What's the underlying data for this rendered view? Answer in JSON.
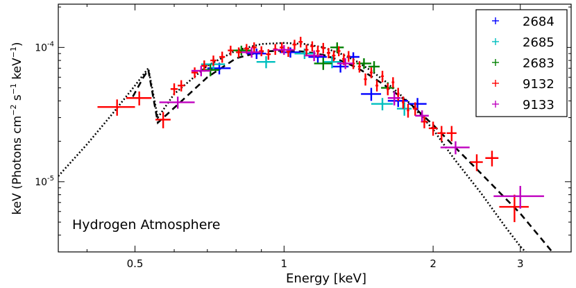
{
  "chart_data": {
    "type": "scatter",
    "title": "",
    "annotation": "Hydrogen Atmosphere",
    "xlabel": "Energy [keV]",
    "ylabel_parts": {
      "pre": "keV (Photons cm",
      "exp1": "−2",
      "mid1": " s",
      "exp2": "−1",
      "mid2": "  keV",
      "exp3": "−1",
      "post": ")"
    },
    "x_scale": "log",
    "y_scale": "log",
    "xlim": [
      0.35,
      3.8
    ],
    "ylim": [
      3e-06,
      0.00021
    ],
    "x_ticks": [
      {
        "value": 0.5,
        "label": "0.5"
      },
      {
        "value": 1,
        "label": "1"
      },
      {
        "value": 2,
        "label": "2"
      },
      {
        "value": 3,
        "label": "3"
      }
    ],
    "y_ticks": [
      {
        "value": 1e-05,
        "base": "10",
        "exp": "-5"
      },
      {
        "value": 0.0001,
        "base": "10",
        "exp": "-4"
      }
    ],
    "legend_position": "top-right",
    "series": [
      {
        "name": "2684",
        "color": "#0000ff",
        "points": [
          [
            0.74,
            7e-05,
            0.04,
            7e-06
          ],
          [
            0.88,
            9e-05,
            0.04,
            8e-06
          ],
          [
            1.03,
            9.2e-05,
            0.05,
            8e-06
          ],
          [
            1.17,
            8.5e-05,
            0.05,
            8e-06
          ],
          [
            1.3,
            7.2e-05,
            0.05,
            7e-06
          ],
          [
            1.38,
            8.5e-05,
            0.04,
            7e-06
          ],
          [
            1.5,
            4.5e-05,
            0.07,
            5e-06
          ],
          [
            1.7,
            4e-05,
            0.08,
            4e-06
          ],
          [
            1.86,
            3.8e-05,
            0.08,
            4e-06
          ]
        ]
      },
      {
        "name": "2685",
        "color": "#00bfbf",
        "points": [
          [
            0.72,
            7.5e-05,
            0.04,
            8e-06
          ],
          [
            0.92,
            7.8e-05,
            0.04,
            8e-06
          ],
          [
            1.1,
            9e-05,
            0.05,
            8e-06
          ],
          [
            1.25,
            7.8e-05,
            0.05,
            8e-06
          ],
          [
            1.58,
            3.8e-05,
            0.08,
            4e-06
          ],
          [
            1.75,
            3.5e-05,
            0.06,
            4e-06
          ]
        ]
      },
      {
        "name": "2683",
        "color": "#008000",
        "points": [
          [
            0.71,
            6.8e-05,
            0.03,
            7e-06
          ],
          [
            0.82,
            9.5e-05,
            0.04,
            8e-06
          ],
          [
            1.2,
            7.6e-05,
            0.05,
            8e-06
          ],
          [
            1.28,
            0.0001,
            0.04,
            9e-06
          ],
          [
            1.45,
            7.6e-05,
            0.05,
            7e-06
          ],
          [
            1.52,
            7.2e-05,
            0.04,
            7e-06
          ],
          [
            1.62,
            5e-05,
            0.05,
            5e-06
          ]
        ]
      },
      {
        "name": "9132",
        "color": "#ff0000",
        "points": [
          [
            0.46,
            3.6e-05,
            0.04,
            5e-06
          ],
          [
            0.51,
            4.2e-05,
            0.03,
            5e-06
          ],
          [
            0.57,
            2.9e-05,
            0.02,
            4e-06
          ],
          [
            0.6,
            4.9e-05,
            0.01,
            5e-06
          ],
          [
            0.62,
            5.2e-05,
            0.01,
            5e-06
          ],
          [
            0.66,
            6.5e-05,
            0.01,
            6e-06
          ],
          [
            0.69,
            7.3e-05,
            0.01,
            7e-06
          ],
          [
            0.72,
            8e-05,
            0.01,
            7e-06
          ],
          [
            0.75,
            8.5e-05,
            0.01,
            8e-06
          ],
          [
            0.78,
            9.5e-05,
            0.01,
            8e-06
          ],
          [
            0.81,
            9.2e-05,
            0.01,
            8e-06
          ],
          [
            0.84,
            9.8e-05,
            0.01,
            8e-06
          ],
          [
            0.87,
            0.0001,
            0.01,
            9e-06
          ],
          [
            0.9,
            9.4e-05,
            0.01,
            8e-06
          ],
          [
            0.93,
            8.9e-05,
            0.01,
            8e-06
          ],
          [
            0.96,
            9.7e-05,
            0.01,
            9e-06
          ],
          [
            0.99,
            0.0001,
            0.01,
            9e-06
          ],
          [
            1.02,
            9.3e-05,
            0.01,
            8e-06
          ],
          [
            1.05,
            0.000105,
            0.01,
            9e-06
          ],
          [
            1.08,
            0.00011,
            0.01,
            1e-05
          ],
          [
            1.11,
            9.6e-05,
            0.01,
            9e-06
          ],
          [
            1.14,
            0.000102,
            0.01,
            9e-06
          ],
          [
            1.17,
            9.4e-05,
            0.01,
            9e-06
          ],
          [
            1.2,
            9.9e-05,
            0.01,
            9e-06
          ],
          [
            1.23,
            9.1e-05,
            0.01,
            8e-06
          ],
          [
            1.26,
            8.7e-05,
            0.01,
            8e-06
          ],
          [
            1.29,
            9.4e-05,
            0.01,
            8e-06
          ],
          [
            1.32,
            8.2e-05,
            0.01,
            8e-06
          ],
          [
            1.35,
            8.6e-05,
            0.01,
            8e-06
          ],
          [
            1.38,
            7.6e-05,
            0.01,
            7e-06
          ],
          [
            1.42,
            7.2e-05,
            0.01,
            7e-06
          ],
          [
            1.46,
            5.8e-05,
            0.01,
            6e-06
          ],
          [
            1.5,
            6.5e-05,
            0.01,
            6e-06
          ],
          [
            1.54,
            5.2e-05,
            0.01,
            5e-06
          ],
          [
            1.58,
            6.1e-05,
            0.01,
            6e-06
          ],
          [
            1.62,
            4.9e-05,
            0.01,
            5e-06
          ],
          [
            1.66,
            5.5e-05,
            0.01,
            5e-06
          ],
          [
            1.7,
            4.5e-05,
            0.01,
            5e-06
          ],
          [
            1.74,
            3.9e-05,
            0.01,
            4e-06
          ],
          [
            1.78,
            3.4e-05,
            0.01,
            4e-06
          ],
          [
            1.84,
            3.5e-05,
            0.02,
            4e-06
          ],
          [
            1.92,
            2.8e-05,
            0.03,
            3e-06
          ],
          [
            2.0,
            2.5e-05,
            0.04,
            3e-06
          ],
          [
            2.08,
            2.3e-05,
            0.04,
            3e-06
          ],
          [
            2.18,
            2.3e-05,
            0.05,
            3e-06
          ],
          [
            2.45,
            1.4e-05,
            0.07,
            2e-06
          ],
          [
            2.63,
            1.5e-05,
            0.08,
            2e-06
          ],
          [
            2.92,
            6.5e-06,
            0.2,
            1.5e-06
          ]
        ]
      },
      {
        "name": "9133",
        "color": "#bf00bf",
        "points": [
          [
            0.61,
            3.9e-05,
            0.05,
            4e-06
          ],
          [
            0.68,
            6.7e-05,
            0.03,
            6e-06
          ],
          [
            0.86,
            9.2e-05,
            0.04,
            8e-06
          ],
          [
            1.0,
            9.6e-05,
            0.05,
            8e-06
          ],
          [
            1.15,
            8.7e-05,
            0.05,
            8e-06
          ],
          [
            1.33,
            7.6e-05,
            0.05,
            7e-06
          ],
          [
            1.67,
            4.2e-05,
            0.05,
            5e-06
          ],
          [
            1.9,
            3.1e-05,
            0.06,
            3e-06
          ],
          [
            2.22,
            1.8e-05,
            0.15,
            2e-06
          ],
          [
            3.0,
            7.8e-06,
            0.35,
            1.5e-06
          ]
        ]
      }
    ],
    "models": [
      {
        "name": "model-dashed",
        "style": "dashed",
        "points": [
          [
            0.495,
            4.3e-05
          ],
          [
            0.52,
            6e-05
          ],
          [
            0.532,
            6.8e-05
          ],
          [
            0.556,
            2.75e-05
          ],
          [
            0.6,
            3.55e-05
          ],
          [
            0.7,
            6e-05
          ],
          [
            0.8,
            8.3e-05
          ],
          [
            0.9,
            9.3e-05
          ],
          [
            1.0,
            9.5e-05
          ],
          [
            1.1,
            9.3e-05
          ],
          [
            1.2,
            8.8e-05
          ],
          [
            1.3,
            8e-05
          ],
          [
            1.4,
            7.1e-05
          ],
          [
            1.5,
            6.1e-05
          ],
          [
            1.6,
            5.2e-05
          ],
          [
            1.8,
            3.8e-05
          ],
          [
            2.0,
            2.65e-05
          ],
          [
            2.2,
            1.85e-05
          ],
          [
            2.5,
            1.15e-05
          ],
          [
            2.8,
            7.5e-06
          ],
          [
            3.0,
            5.8e-06
          ],
          [
            3.3,
            3.8e-06
          ],
          [
            3.48,
            3e-06
          ]
        ]
      },
      {
        "name": "model-dotted",
        "style": "dotted",
        "points": [
          [
            0.35,
            1.1e-05
          ],
          [
            0.4,
            1.9e-05
          ],
          [
            0.45,
            3.2e-05
          ],
          [
            0.5,
            5.2e-05
          ],
          [
            0.532,
            7e-05
          ],
          [
            0.556,
            3e-05
          ],
          [
            0.6,
            4.5e-05
          ],
          [
            0.7,
            7.3e-05
          ],
          [
            0.8,
            9.5e-05
          ],
          [
            0.9,
            0.000106
          ],
          [
            1.0,
            0.000108
          ],
          [
            1.1,
            0.000106
          ],
          [
            1.2,
            0.0001
          ],
          [
            1.3,
            9e-05
          ],
          [
            1.4,
            7.9e-05
          ],
          [
            1.5,
            6.7e-05
          ],
          [
            1.6,
            5.6e-05
          ],
          [
            1.8,
            3.8e-05
          ],
          [
            2.0,
            2.45e-05
          ],
          [
            2.2,
            1.5e-05
          ],
          [
            2.5,
            8.2e-06
          ],
          [
            2.8,
            4.6e-06
          ],
          [
            3.0,
            3.3e-06
          ],
          [
            3.1,
            2.9e-06
          ]
        ]
      }
    ]
  }
}
